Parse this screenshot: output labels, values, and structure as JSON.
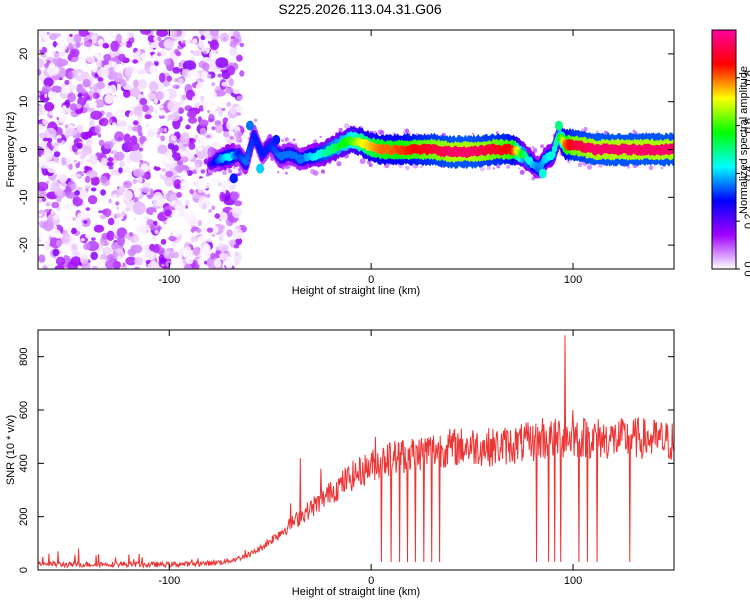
{
  "figure": {
    "title": "S225.2026.113.04.31.G06"
  },
  "chart_data": [
    {
      "type": "heatmap",
      "title": "S225.2026.113.04.31.G06",
      "xlabel": "Height of straight line (km)",
      "ylabel": "Frequency (Hz)",
      "xlim": [
        -165,
        150
      ],
      "ylim": [
        -25,
        25
      ],
      "xticks": [
        -100,
        0,
        100
      ],
      "yticks": [
        -20,
        -10,
        0,
        10,
        20
      ],
      "colorbar": {
        "label": "Normalized spectral amplitude",
        "range": [
          0,
          1
        ],
        "ticks": [
          0,
          0.2,
          0.4,
          0.6,
          0.8
        ],
        "tick_labels": [
          "0.0",
          "0.2",
          "0.4",
          "0.6",
          "0.8"
        ],
        "colors": [
          "#ffffff",
          "#a000ff",
          "#0000ff",
          "#00ffff",
          "#00ff00",
          "#ffff00",
          "#ff0000",
          "#ff00a0"
        ]
      },
      "noise_region_x": [
        -165,
        -68
      ],
      "ridge": {
        "x": [
          -80,
          -75,
          -70,
          -66,
          -62,
          -58,
          -54,
          -50,
          -45,
          -40,
          -35,
          -30,
          -25,
          -20,
          -15,
          -10,
          -5,
          0,
          5,
          10,
          20,
          30,
          40,
          50,
          60,
          70,
          75,
          80,
          83,
          86,
          90,
          93,
          96,
          100,
          110,
          120,
          130,
          140,
          150
        ],
        "freq": [
          -3,
          -2,
          -1.5,
          -1,
          -3,
          3,
          -1,
          1,
          -1.5,
          -1,
          -2,
          -1.5,
          -1,
          0,
          1,
          2,
          1.5,
          0.5,
          0,
          0,
          0,
          0,
          -0.5,
          -0.5,
          0,
          0,
          -1,
          -3,
          -4,
          -2,
          -1,
          3,
          1,
          1,
          0,
          0,
          0,
          0,
          0
        ],
        "amp": [
          0.2,
          0.35,
          0.45,
          0.3,
          0.35,
          0.3,
          0.3,
          0.3,
          0.35,
          0.35,
          0.35,
          0.4,
          0.45,
          0.5,
          0.55,
          0.6,
          0.7,
          0.75,
          0.8,
          0.8,
          0.85,
          0.9,
          0.95,
          0.95,
          0.9,
          0.85,
          0.55,
          0.4,
          0.35,
          0.4,
          0.45,
          0.5,
          0.8,
          0.9,
          0.95,
          0.95,
          0.95,
          0.95,
          0.95
        ]
      }
    },
    {
      "type": "line",
      "xlabel": "Height of straight line (km)",
      "ylabel": "SNR (10 * v/v)",
      "xlim": [
        -165,
        150
      ],
      "ylim": [
        0,
        900
      ],
      "xticks": [
        -100,
        0,
        100
      ],
      "yticks": [
        0,
        200,
        400,
        600,
        800
      ],
      "series": [
        {
          "color": "#ee3333",
          "envelope": {
            "x": [
              -165,
              -150,
              -130,
              -110,
              -90,
              -80,
              -70,
              -65,
              -60,
              -55,
              -50,
              -45,
              -40,
              -35,
              -30,
              -25,
              -20,
              -15,
              -10,
              -5,
              0,
              5,
              10,
              15,
              20,
              30,
              40,
              50,
              60,
              70,
              80,
              90,
              100,
              110,
              120,
              130,
              140,
              150
            ],
            "y": [
              25,
              20,
              22,
              20,
              22,
              25,
              35,
              45,
              60,
              80,
              110,
              140,
              170,
              200,
              230,
              260,
              290,
              320,
              350,
              370,
              390,
              410,
              420,
              430,
              435,
              450,
              460,
              465,
              460,
              470,
              480,
              490,
              500,
              495,
              490,
              495,
              490,
              480
            ]
          },
          "spikes_up": [
            {
              "x": -155,
              "y": 70
            },
            {
              "x": -145,
              "y": 80
            },
            {
              "x": -135,
              "y": 60
            },
            {
              "x": -115,
              "y": 60
            },
            {
              "x": -40,
              "y": 250
            },
            {
              "x": -35,
              "y": 420
            },
            {
              "x": -25,
              "y": 380
            },
            {
              "x": -20,
              "y": 330
            },
            {
              "x": -10,
              "y": 310
            },
            {
              "x": 2,
              "y": 500
            },
            {
              "x": 8,
              "y": 470
            },
            {
              "x": 15,
              "y": 480
            },
            {
              "x": 85,
              "y": 570
            },
            {
              "x": 93,
              "y": 560
            },
            {
              "x": 96,
              "y": 880
            },
            {
              "x": 100,
              "y": 600
            }
          ],
          "dropouts_x": [
            5,
            10,
            14,
            18,
            22,
            26,
            30,
            34,
            82,
            85,
            88,
            91,
            94,
            103,
            107,
            112,
            128
          ],
          "dropout_floor": 30
        }
      ]
    }
  ]
}
